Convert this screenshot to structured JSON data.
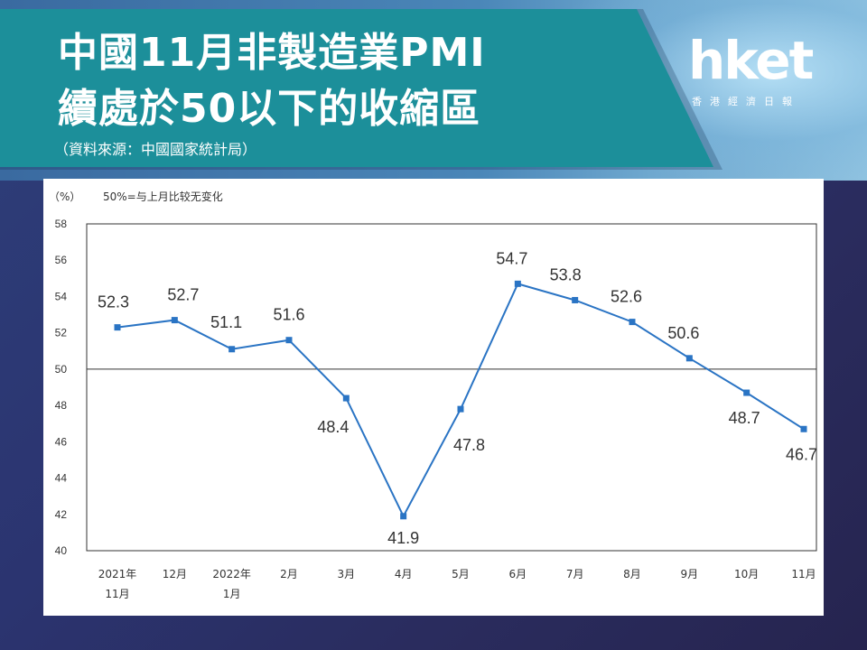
{
  "header": {
    "title_line1": "中國11月非製造業PMI",
    "title_line2": "續處於50以下的收縮區",
    "source": "（資料來源：中國國家統計局）"
  },
  "logo": {
    "brand": "hket",
    "subtitle": "香港經濟日報"
  },
  "colors": {
    "banner": "#1c8f9a",
    "series": "#2a74c4",
    "axis": "#333333"
  },
  "chart_data": {
    "type": "line",
    "unit_label": "（%）",
    "note": "50%=与上月比较无变化",
    "categories": [
      [
        "2021年",
        "11月"
      ],
      [
        "12月"
      ],
      [
        "2022年",
        "1月"
      ],
      [
        "2月"
      ],
      [
        "3月"
      ],
      [
        "4月"
      ],
      [
        "5月"
      ],
      [
        "6月"
      ],
      [
        "7月"
      ],
      [
        "8月"
      ],
      [
        "9月"
      ],
      [
        "10月"
      ],
      [
        "11月"
      ]
    ],
    "series": [
      {
        "values": [
          52.3,
          52.7,
          51.1,
          51.6,
          48.4,
          41.9,
          47.8,
          54.7,
          53.8,
          52.6,
          50.6,
          48.7,
          46.7
        ],
        "labels": [
          "52.3",
          "52.7",
          "51.1",
          "51.6",
          "48.4",
          "41.9",
          "47.8",
          "54.7",
          "53.8",
          "52.6",
          "50.6",
          "48.7",
          "46.7"
        ]
      }
    ],
    "yticks": [
      40,
      42,
      44,
      46,
      48,
      50,
      52,
      54,
      56,
      58
    ],
    "ylim": [
      40,
      58
    ],
    "reference_line": 50,
    "grid": false,
    "legend": "none"
  }
}
